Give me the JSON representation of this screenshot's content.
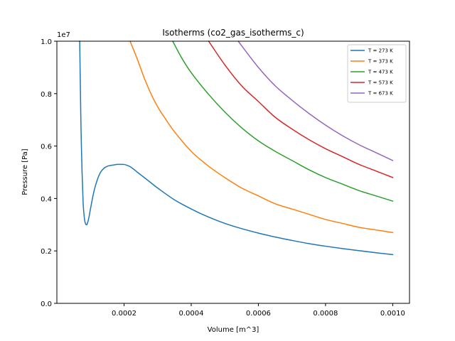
{
  "chart_data": {
    "type": "line",
    "title": "Isotherms (co2_gas_isotherms_c)",
    "xlabel": "Volume [m^3]",
    "ylabel": "Pressure [Pa]",
    "y_offset_label": "1e7",
    "xlim": [
      0.0,
      0.00105
    ],
    "ylim": [
      0.0,
      1.0
    ],
    "xticks": [
      0.0002,
      0.0004,
      0.0006,
      0.0008,
      0.001
    ],
    "xtick_labels": [
      "0.0002",
      "0.0004",
      "0.0006",
      "0.0008",
      "0.0010"
    ],
    "yticks": [
      0.0,
      0.2,
      0.4,
      0.6,
      0.8,
      1.0
    ],
    "ytick_labels": [
      "0.0",
      "0.2",
      "0.4",
      "0.6",
      "0.8",
      "1.0"
    ],
    "legend_position": "top-right",
    "grid": false,
    "series": [
      {
        "name": "T = 273 K",
        "color": "#1f77b4",
        "x": [
          6.8e-05,
          7e-05,
          7.2e-05,
          7.5e-05,
          7.8e-05,
          8e-05,
          8.3e-05,
          8.6e-05,
          8.8e-05,
          9e-05,
          9.5e-05,
          0.0001,
          0.00011,
          0.00012,
          0.00013,
          0.00014,
          0.00015,
          0.00016,
          0.00017,
          0.00018,
          0.00019,
          0.0002,
          0.00021,
          0.00022,
          0.00024,
          0.00026,
          0.00028,
          0.0003,
          0.00035,
          0.0004,
          0.00045,
          0.0005,
          0.00055,
          0.0006,
          0.00065,
          0.0007,
          0.00075,
          0.0008,
          0.00085,
          0.0009,
          0.00095,
          0.001
        ],
        "y": [
          1.0,
          0.82,
          0.66,
          0.5,
          0.39,
          0.35,
          0.315,
          0.302,
          0.3,
          0.302,
          0.325,
          0.36,
          0.425,
          0.47,
          0.5,
          0.515,
          0.523,
          0.526,
          0.528,
          0.53,
          0.53,
          0.53,
          0.526,
          0.52,
          0.5,
          0.48,
          0.46,
          0.44,
          0.395,
          0.36,
          0.33,
          0.305,
          0.285,
          0.268,
          0.253,
          0.24,
          0.228,
          0.218,
          0.209,
          0.201,
          0.193,
          0.186
        ]
      },
      {
        "name": "T = 373 K",
        "color": "#ff7f0e",
        "x": [
          0.000218,
          0.00024,
          0.00026,
          0.00028,
          0.0003,
          0.00032,
          0.00035,
          0.0004,
          0.00045,
          0.0005,
          0.00055,
          0.0006,
          0.00065,
          0.0007,
          0.00075,
          0.0008,
          0.00085,
          0.0009,
          0.00095,
          0.001
        ],
        "y": [
          1.0,
          0.93,
          0.86,
          0.8,
          0.75,
          0.71,
          0.655,
          0.58,
          0.525,
          0.48,
          0.44,
          0.41,
          0.38,
          0.36,
          0.34,
          0.32,
          0.305,
          0.29,
          0.28,
          0.27
        ]
      },
      {
        "name": "T = 473 K",
        "color": "#2ca02c",
        "x": [
          0.000345,
          0.00037,
          0.0004,
          0.00045,
          0.0005,
          0.00055,
          0.0006,
          0.00065,
          0.0007,
          0.00075,
          0.0008,
          0.00085,
          0.0009,
          0.00095,
          0.001
        ],
        "y": [
          1.0,
          0.94,
          0.88,
          0.8,
          0.73,
          0.67,
          0.62,
          0.58,
          0.545,
          0.51,
          0.48,
          0.455,
          0.43,
          0.41,
          0.39
        ]
      },
      {
        "name": "T = 573 K",
        "color": "#d62728",
        "x": [
          0.000452,
          0.0005,
          0.00055,
          0.0006,
          0.00065,
          0.0007,
          0.00075,
          0.0008,
          0.00085,
          0.0009,
          0.00095,
          0.001
        ],
        "y": [
          1.0,
          0.91,
          0.83,
          0.77,
          0.71,
          0.665,
          0.625,
          0.59,
          0.56,
          0.53,
          0.505,
          0.48
        ]
      },
      {
        "name": "T = 673 K",
        "color": "#9467bd",
        "x": [
          0.00054,
          0.0006,
          0.00065,
          0.0007,
          0.00075,
          0.0008,
          0.00085,
          0.0009,
          0.00095,
          0.001
        ],
        "y": [
          1.0,
          0.9,
          0.83,
          0.775,
          0.725,
          0.68,
          0.64,
          0.605,
          0.575,
          0.545
        ]
      }
    ]
  }
}
